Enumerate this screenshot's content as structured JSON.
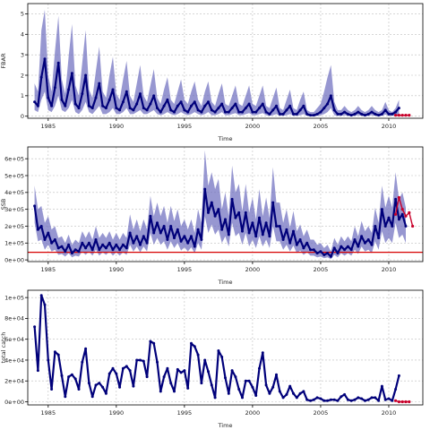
{
  "chart_data": [
    {
      "type": "line",
      "title": "",
      "xlabel": "Time",
      "ylabel": "FBAR",
      "xlim": [
        1983.5,
        2012.5
      ],
      "ylim": [
        -0.1,
        5.5
      ],
      "xticks": [
        1985,
        1990,
        1995,
        2000,
        2005,
        2010
      ],
      "xtick_labels": [
        "1985",
        "1990",
        "1995",
        "2000",
        "2005",
        "2010"
      ],
      "yticks": [
        0,
        1,
        2,
        3,
        4,
        5
      ],
      "ytick_labels": [
        "0",
        "1",
        "2",
        "3",
        "4",
        "5"
      ],
      "grid": true,
      "legend": "none",
      "colors": {
        "median": "#00007a",
        "band": "#6f6fbf",
        "projection": "#c8002a"
      },
      "points_per_year": 4,
      "x_start": 1984.0,
      "series": [
        {
          "role": "median",
          "values": [
            0.7,
            0.5,
            1.9,
            2.8,
            0.9,
            0.5,
            1.4,
            2.6,
            0.8,
            0.5,
            1.3,
            2.1,
            0.6,
            0.4,
            1.1,
            2.0,
            0.5,
            0.4,
            0.9,
            1.6,
            0.5,
            0.4,
            0.8,
            1.3,
            0.4,
            0.3,
            0.7,
            1.2,
            0.4,
            0.3,
            0.6,
            1.1,
            0.4,
            0.3,
            0.6,
            1.0,
            0.4,
            0.2,
            0.5,
            0.8,
            0.3,
            0.2,
            0.5,
            0.7,
            0.3,
            0.2,
            0.5,
            0.7,
            0.3,
            0.2,
            0.5,
            0.7,
            0.3,
            0.2,
            0.4,
            0.6,
            0.2,
            0.2,
            0.4,
            0.6,
            0.2,
            0.2,
            0.4,
            0.6,
            0.2,
            0.2,
            0.4,
            0.6,
            0.2,
            0.1,
            0.3,
            0.5,
            0.1,
            0.1,
            0.3,
            0.5,
            0.1,
            0.1,
            0.3,
            0.5,
            0.1,
            0.05,
            0.05,
            0.1,
            0.2,
            0.4,
            0.6,
            1.0,
            0.3,
            0.1,
            0.1,
            0.2,
            0.1,
            0.05,
            0.1,
            0.2,
            0.1,
            0.05,
            0.1,
            0.2,
            0.1,
            0.05,
            0.1,
            0.3,
            0.1,
            0.1,
            0.2,
            0.4
          ]
        },
        {
          "role": "upper",
          "values": [
            1.6,
            1.2,
            4.2,
            5.2,
            2.0,
            1.2,
            3.2,
            4.9,
            1.8,
            1.1,
            2.9,
            4.5,
            1.5,
            1.0,
            2.6,
            4.2,
            1.3,
            0.9,
            2.2,
            3.4,
            1.2,
            0.9,
            2.0,
            2.9,
            1.1,
            0.8,
            1.8,
            2.7,
            1.0,
            0.7,
            1.6,
            2.5,
            1.0,
            0.7,
            1.5,
            2.3,
            0.9,
            0.6,
            1.3,
            1.9,
            0.8,
            0.6,
            1.2,
            1.8,
            0.8,
            0.6,
            1.2,
            1.7,
            0.8,
            0.5,
            1.2,
            1.7,
            0.7,
            0.5,
            1.1,
            1.6,
            0.6,
            0.5,
            1.0,
            1.5,
            0.6,
            0.5,
            1.0,
            1.5,
            0.6,
            0.5,
            1.0,
            1.5,
            0.5,
            0.4,
            0.9,
            1.4,
            0.4,
            0.3,
            0.8,
            1.3,
            0.4,
            0.3,
            0.8,
            1.2,
            0.3,
            0.2,
            0.2,
            0.4,
            0.6,
            1.2,
            1.9,
            2.5,
            0.7,
            0.3,
            0.3,
            0.5,
            0.3,
            0.2,
            0.3,
            0.5,
            0.3,
            0.2,
            0.3,
            0.5,
            0.3,
            0.2,
            0.3,
            0.7,
            0.3,
            0.2,
            0.4,
            0.8
          ]
        },
        {
          "role": "lower",
          "values": [
            0.3,
            0.2,
            0.8,
            1.2,
            0.3,
            0.2,
            0.5,
            1.0,
            0.3,
            0.2,
            0.4,
            0.8,
            0.2,
            0.1,
            0.3,
            0.7,
            0.2,
            0.1,
            0.3,
            0.5,
            0.1,
            0.1,
            0.2,
            0.4,
            0.1,
            0.1,
            0.2,
            0.4,
            0.1,
            0.1,
            0.2,
            0.3,
            0.1,
            0.1,
            0.2,
            0.3,
            0.1,
            0.05,
            0.1,
            0.2,
            0.1,
            0.05,
            0.1,
            0.2,
            0.1,
            0.05,
            0.1,
            0.2,
            0.1,
            0.05,
            0.1,
            0.2,
            0.05,
            0.05,
            0.1,
            0.2,
            0.05,
            0.05,
            0.1,
            0.15,
            0.05,
            0.05,
            0.1,
            0.15,
            0.05,
            0.05,
            0.1,
            0.15,
            0.05,
            0.02,
            0.05,
            0.1,
            0.02,
            0.02,
            0.05,
            0.1,
            0.02,
            0.02,
            0.05,
            0.1,
            0.02,
            0.0,
            0.0,
            0.02,
            0.05,
            0.1,
            0.2,
            0.4,
            0.05,
            0.02,
            0.02,
            0.05,
            0.02,
            0.0,
            0.02,
            0.05,
            0.02,
            0.0,
            0.02,
            0.05,
            0.02,
            0.0,
            0.02,
            0.08,
            0.02,
            0.02,
            0.05,
            0.1
          ]
        },
        {
          "role": "projection",
          "x": [
            2010.5,
            2010.75,
            2011.0,
            2011.25,
            2011.5
          ],
          "values": [
            0.05,
            0.05,
            0.05,
            0.05,
            0.05
          ]
        }
      ]
    },
    {
      "type": "line",
      "title": "",
      "xlabel": "Time",
      "ylabel": "SSB",
      "xlim": [
        1983.5,
        2012.5
      ],
      "ylim": [
        -10000,
        670000
      ],
      "xticks": [
        1985,
        1990,
        1995,
        2000,
        2005,
        2010
      ],
      "xtick_labels": [
        "1985",
        "1990",
        "1995",
        "2000",
        "2005",
        "2010"
      ],
      "yticks": [
        0,
        100000,
        200000,
        300000,
        400000,
        500000,
        600000
      ],
      "ytick_labels": [
        "0e+00",
        "1e+05",
        "2e+05",
        "3e+05",
        "4e+05",
        "5e+05",
        "6e+05"
      ],
      "grid": true,
      "legend": "none",
      "colors": {
        "median": "#00007a",
        "band": "#6f6fbf",
        "projection": "#c8002a",
        "reference": "#d60000"
      },
      "reference_line": 45000,
      "points_per_year": 4,
      "x_start": 1984.0,
      "series": [
        {
          "role": "median",
          "values": [
            320000,
            180000,
            200000,
            120000,
            160000,
            100000,
            120000,
            70000,
            80000,
            50000,
            90000,
            40000,
            60000,
            50000,
            100000,
            70000,
            100000,
            60000,
            120000,
            60000,
            90000,
            70000,
            100000,
            60000,
            90000,
            60000,
            90000,
            70000,
            160000,
            100000,
            140000,
            90000,
            140000,
            100000,
            260000,
            160000,
            220000,
            160000,
            200000,
            120000,
            200000,
            130000,
            180000,
            110000,
            140000,
            100000,
            140000,
            80000,
            180000,
            120000,
            420000,
            280000,
            340000,
            260000,
            300000,
            180000,
            240000,
            150000,
            360000,
            250000,
            280000,
            170000,
            280000,
            160000,
            220000,
            140000,
            250000,
            150000,
            220000,
            140000,
            340000,
            200000,
            200000,
            120000,
            180000,
            100000,
            170000,
            90000,
            120000,
            70000,
            100000,
            60000,
            60000,
            40000,
            50000,
            30000,
            40000,
            20000,
            70000,
            40000,
            80000,
            60000,
            80000,
            60000,
            120000,
            80000,
            140000,
            100000,
            120000,
            90000,
            200000,
            130000,
            300000,
            200000,
            250000,
            200000,
            360000,
            240000,
            270000,
            200000
          ]
        },
        {
          "role": "upper",
          "values": [
            440000,
            300000,
            320000,
            220000,
            260000,
            180000,
            200000,
            130000,
            140000,
            100000,
            150000,
            90000,
            120000,
            100000,
            170000,
            130000,
            170000,
            120000,
            200000,
            130000,
            160000,
            130000,
            170000,
            120000,
            160000,
            120000,
            160000,
            130000,
            270000,
            180000,
            240000,
            170000,
            240000,
            180000,
            380000,
            260000,
            340000,
            260000,
            320000,
            220000,
            320000,
            230000,
            300000,
            200000,
            240000,
            180000,
            240000,
            160000,
            300000,
            220000,
            650000,
            440000,
            520000,
            420000,
            480000,
            300000,
            400000,
            260000,
            560000,
            400000,
            450000,
            290000,
            450000,
            280000,
            370000,
            240000,
            420000,
            260000,
            370000,
            250000,
            550000,
            340000,
            340000,
            220000,
            300000,
            190000,
            290000,
            170000,
            210000,
            140000,
            180000,
            120000,
            120000,
            90000,
            100000,
            70000,
            90000,
            50000,
            130000,
            90000,
            140000,
            110000,
            140000,
            110000,
            200000,
            140000,
            230000,
            170000,
            200000,
            160000,
            310000,
            220000,
            440000,
            310000,
            380000,
            310000,
            520000,
            360000,
            400000,
            310000
          ]
        },
        {
          "role": "lower",
          "values": [
            220000,
            110000,
            120000,
            60000,
            90000,
            50000,
            60000,
            30000,
            35000,
            20000,
            40000,
            15000,
            25000,
            20000,
            50000,
            30000,
            50000,
            25000,
            60000,
            25000,
            45000,
            30000,
            50000,
            25000,
            45000,
            25000,
            45000,
            30000,
            90000,
            50000,
            80000,
            45000,
            80000,
            50000,
            160000,
            90000,
            130000,
            90000,
            110000,
            60000,
            110000,
            70000,
            100000,
            55000,
            75000,
            50000,
            75000,
            40000,
            100000,
            60000,
            260000,
            160000,
            210000,
            150000,
            180000,
            100000,
            140000,
            80000,
            220000,
            140000,
            160000,
            90000,
            160000,
            80000,
            120000,
            70000,
            140000,
            80000,
            120000,
            70000,
            200000,
            110000,
            110000,
            60000,
            90000,
            50000,
            85000,
            40000,
            55000,
            30000,
            45000,
            25000,
            25000,
            15000,
            20000,
            10000,
            15000,
            5000,
            30000,
            15000,
            40000,
            25000,
            40000,
            25000,
            60000,
            35000,
            80000,
            50000,
            60000,
            40000,
            110000,
            60000,
            170000,
            100000,
            130000,
            100000,
            220000,
            130000,
            150000,
            100000
          ]
        },
        {
          "role": "projection",
          "x": [
            2010.5,
            2010.75,
            2011.0,
            2011.25,
            2011.5,
            2011.75
          ],
          "values": [
            270000,
            370000,
            300000,
            260000,
            280000,
            200000
          ]
        }
      ]
    },
    {
      "type": "line",
      "title": "",
      "xlabel": "Time",
      "ylabel": "total catch",
      "xlim": [
        1983.5,
        2012.5
      ],
      "ylim": [
        -3000,
        107000
      ],
      "xticks": [
        1985,
        1990,
        1995,
        2000,
        2005,
        2010
      ],
      "xtick_labels": [
        "1985",
        "1990",
        "1995",
        "2000",
        "2005",
        "2010"
      ],
      "yticks": [
        0,
        20000,
        40000,
        60000,
        80000,
        100000
      ],
      "ytick_labels": [
        "0e+00",
        "2e+04",
        "4e+04",
        "6e+04",
        "8e+04",
        "1e+05"
      ],
      "grid": true,
      "legend": "none",
      "colors": {
        "line": "#00007a",
        "projection": "#c8002a"
      },
      "points_per_year": 4,
      "x_start": 1984.0,
      "series": [
        {
          "role": "median",
          "values": [
            72000,
            30000,
            102000,
            93000,
            40000,
            12000,
            48000,
            45000,
            25000,
            5000,
            24000,
            26000,
            22000,
            12000,
            38000,
            51000,
            18000,
            5000,
            16000,
            18000,
            14000,
            8000,
            27000,
            32000,
            27000,
            14000,
            32000,
            34000,
            30000,
            15000,
            40000,
            40000,
            39000,
            24000,
            58000,
            56000,
            38000,
            10000,
            24000,
            32000,
            18000,
            10000,
            31000,
            28000,
            30000,
            13000,
            56000,
            53000,
            45000,
            18000,
            40000,
            29000,
            16000,
            4000,
            49000,
            43000,
            23000,
            8000,
            30000,
            24000,
            12000,
            4000,
            20000,
            20000,
            14000,
            6000,
            32000,
            47000,
            16000,
            8000,
            14000,
            26000,
            10000,
            4000,
            7000,
            15000,
            8000,
            4000,
            8000,
            10000,
            2000,
            1000,
            2000,
            4000,
            3000,
            1000,
            1000,
            2000,
            2000,
            1000,
            5000,
            7000,
            2000,
            1000,
            2000,
            4000,
            3000,
            1000,
            2000,
            4000,
            4000,
            1000,
            15000,
            2000,
            3000,
            1000,
            12000,
            25000
          ]
        },
        {
          "role": "projection",
          "x": [
            2010.5,
            2010.75,
            2011.0,
            2011.25,
            2011.5
          ],
          "values": [
            1000,
            0,
            0,
            0,
            0
          ]
        }
      ]
    }
  ]
}
